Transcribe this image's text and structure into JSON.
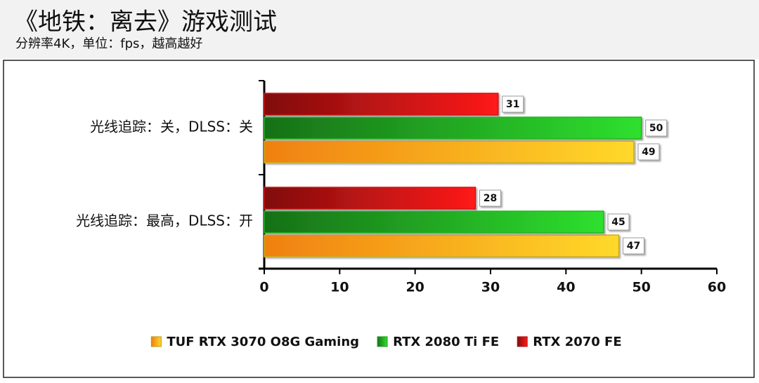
{
  "chart_data": {
    "type": "bar",
    "orientation": "horizontal",
    "title": "《地铁：离去》游戏测试",
    "subtitle": "分辨率4K，单位：fps，越高越好",
    "categories": [
      "光线追踪：关，DLSS：关",
      "光线追踪：最高，DLSS：开"
    ],
    "series": [
      {
        "name": "TUF RTX 3070 O8G Gaming",
        "color": "#ffd92a",
        "values": [
          49,
          47
        ]
      },
      {
        "name": "RTX 2080 Ti FE",
        "color": "#2ee02e",
        "values": [
          50,
          45
        ]
      },
      {
        "name": "RTX 2070 FE",
        "color": "#ff1a1a",
        "values": [
          31,
          28
        ]
      }
    ],
    "xlim": [
      0,
      60
    ],
    "xticks": [
      0,
      10,
      20,
      30,
      40,
      50,
      60
    ],
    "legend": "bottom"
  }
}
